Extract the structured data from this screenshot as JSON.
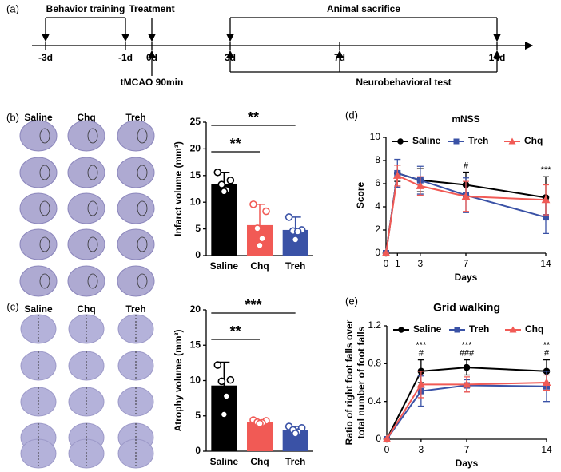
{
  "figure": {
    "panel_labels": [
      "(a)",
      "(b)",
      "(c)",
      "(d)",
      "(e)"
    ]
  },
  "timeline": {
    "ticks": [
      "-3d",
      "-1d",
      "0d",
      "3d",
      "7d",
      "14d"
    ],
    "labels": [
      "Behavior training",
      "Treatment",
      "Animal sacrifice",
      "tMCAO 90min",
      "Neurobehavioral test"
    ]
  },
  "images": {
    "b_headers": [
      "Saline",
      "Chq",
      "Treh"
    ],
    "c_headers": [
      "Saline",
      "Chq",
      "Treh"
    ]
  },
  "chart_data": [
    {
      "type": "bar",
      "ylabel": "Infarct volume (mm³)",
      "categories": [
        "Saline",
        "Chq",
        "Treh"
      ],
      "values": [
        13.4,
        5.7,
        4.8
      ],
      "errors": [
        2.2,
        3.9,
        2.4
      ],
      "points": [
        [
          15.6,
          14.1,
          13.3,
          12.3,
          12.0
        ],
        [
          9.6,
          8.3,
          5.1,
          3.2,
          1.9
        ],
        [
          7.2,
          4.8,
          4.6,
          4.5,
          3.0
        ]
      ],
      "colors": [
        "#000000",
        "#f15a55",
        "#3a52a6"
      ],
      "ylim": [
        0,
        25
      ],
      "yticks": [
        0,
        5,
        10,
        15,
        20,
        25
      ],
      "significance": [
        {
          "between": [
            "Saline",
            "Treh"
          ],
          "label": "**"
        },
        {
          "between": [
            "Saline",
            "Chq"
          ],
          "label": "**"
        }
      ]
    },
    {
      "type": "bar",
      "ylabel": "Atrophy volume (mm³)",
      "categories": [
        "Saline",
        "Chq",
        "Treh"
      ],
      "values": [
        9.3,
        4.1,
        3.0
      ],
      "errors": [
        3.3,
        0.3,
        0.5
      ],
      "points": [
        [
          12.2,
          10.1,
          9.9,
          7.8,
          5.2
        ],
        [
          4.4,
          4.3,
          4.1,
          4.0,
          3.9
        ],
        [
          3.5,
          3.3,
          3.0,
          2.7,
          2.5
        ]
      ],
      "colors": [
        "#000000",
        "#f15a55",
        "#3a52a6"
      ],
      "ylim": [
        0,
        20
      ],
      "yticks": [
        0,
        5,
        10,
        15,
        20
      ],
      "significance": [
        {
          "between": [
            "Saline",
            "Treh"
          ],
          "label": "***"
        },
        {
          "between": [
            "Saline",
            "Chq"
          ],
          "label": "**"
        }
      ]
    },
    {
      "type": "line",
      "title": "mNSS",
      "xlabel": "Days",
      "ylabel": "Score",
      "x": [
        0,
        1,
        3,
        7,
        14
      ],
      "xlim": [
        0,
        14
      ],
      "xticks": [
        0,
        1,
        3,
        7,
        14
      ],
      "ylim": [
        0,
        10
      ],
      "yticks": [
        0,
        2,
        4,
        6,
        8,
        10
      ],
      "series": [
        {
          "name": "Saline",
          "color": "#000000",
          "marker": "circle",
          "values": [
            0,
            6.9,
            6.3,
            5.9,
            4.8
          ],
          "errors": [
            0,
            0.7,
            1.0,
            1.1,
            1.8
          ]
        },
        {
          "name": "Treh",
          "color": "#3a52a6",
          "marker": "square",
          "values": [
            0,
            6.9,
            6.3,
            5.0,
            3.1
          ],
          "errors": [
            0,
            1.2,
            1.2,
            1.5,
            1.4
          ]
        },
        {
          "name": "Chq",
          "color": "#f15a55",
          "marker": "triangle",
          "values": [
            0,
            6.7,
            5.8,
            4.9,
            4.6
          ],
          "errors": [
            0,
            0.9,
            0.8,
            1.3,
            1.3
          ]
        }
      ],
      "annotations": [
        {
          "x": 7,
          "text": [
            "#"
          ]
        },
        {
          "x": 14,
          "text": [
            "***"
          ]
        }
      ]
    },
    {
      "type": "line",
      "title": "Grid walking",
      "xlabel": "Days",
      "ylabel": [
        "Ratio of right foot falls over",
        "total number of foot falls"
      ],
      "x": [
        0,
        3,
        7,
        14
      ],
      "xlim": [
        0,
        14
      ],
      "xticks": [
        0,
        3,
        7,
        14
      ],
      "ylim": [
        0,
        1.2
      ],
      "yticks": [
        0,
        0.4,
        0.8,
        1.2
      ],
      "series": [
        {
          "name": "Saline",
          "color": "#000000",
          "marker": "circle",
          "values": [
            0,
            0.72,
            0.76,
            0.72
          ],
          "errors": [
            0,
            0.12,
            0.08,
            0.12
          ]
        },
        {
          "name": "Treh",
          "color": "#3a52a6",
          "marker": "square",
          "values": [
            0,
            0.51,
            0.57,
            0.56
          ],
          "errors": [
            0,
            0.16,
            0.06,
            0.16
          ]
        },
        {
          "name": "Chq",
          "color": "#f15a55",
          "marker": "triangle",
          "values": [
            0,
            0.58,
            0.58,
            0.6
          ],
          "errors": [
            0,
            0.14,
            0.08,
            0.08
          ]
        }
      ],
      "annotations": [
        {
          "x": 3,
          "text": [
            "***",
            "#"
          ]
        },
        {
          "x": 7,
          "text": [
            "***",
            "###"
          ]
        },
        {
          "x": 14,
          "text": [
            "**",
            "#"
          ]
        }
      ]
    }
  ]
}
